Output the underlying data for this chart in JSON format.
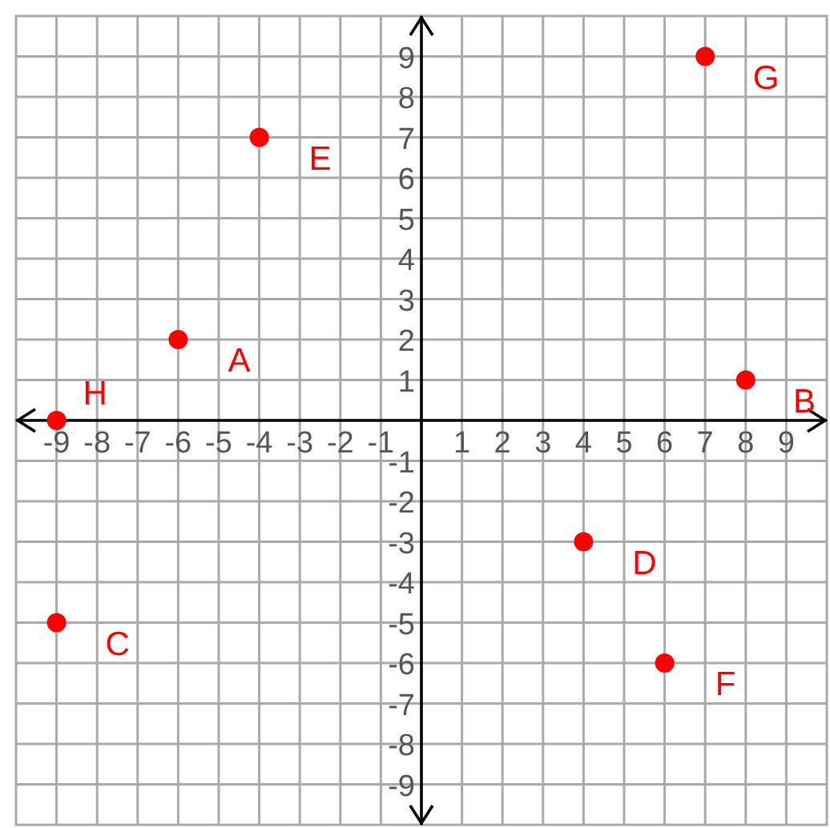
{
  "chart_data": {
    "type": "scatter",
    "marker": "circle",
    "grid": true,
    "xlim": [
      -10,
      10
    ],
    "ylim": [
      -10,
      10
    ],
    "xticks": [
      -9,
      -8,
      -7,
      -6,
      -5,
      -4,
      -3,
      -2,
      -1,
      1,
      2,
      3,
      4,
      5,
      6,
      7,
      8,
      9
    ],
    "yticks": [
      -9,
      -8,
      -7,
      -6,
      -5,
      -4,
      -3,
      -2,
      -1,
      1,
      2,
      3,
      4,
      5,
      6,
      7,
      8,
      9
    ],
    "series": [
      {
        "color": "#ff0000",
        "x": [
          -6,
          8,
          -9,
          4,
          -4,
          6,
          7,
          -9
        ],
        "values": [
          2,
          1,
          -5,
          -3,
          7,
          -6,
          9,
          0
        ]
      }
    ],
    "annotations": [
      {
        "text": "A",
        "x": -6,
        "y": 2
      },
      {
        "text": "B",
        "x": 8,
        "y": 1
      },
      {
        "text": "C",
        "x": -9,
        "y": -5
      },
      {
        "text": "D",
        "x": 4,
        "y": -3
      },
      {
        "text": "E",
        "x": -4,
        "y": 7
      },
      {
        "text": "F",
        "x": 6,
        "y": -6
      },
      {
        "text": "G",
        "x": 7,
        "y": 9
      },
      {
        "text": "H",
        "x": -9,
        "y": 0
      }
    ]
  }
}
